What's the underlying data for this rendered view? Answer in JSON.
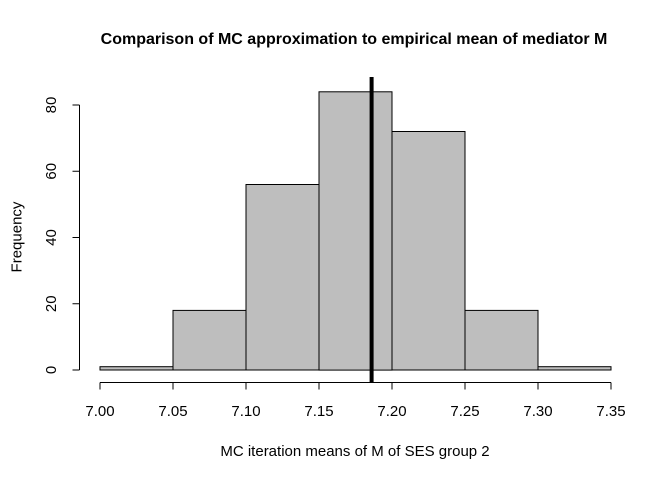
{
  "chart_data": {
    "type": "bar",
    "subtype": "histogram",
    "title": "Comparison of MC approximation to empirical mean of mediator M",
    "xlabel": "MC iteration means of M of SES group 2",
    "ylabel": "Frequency",
    "bin_edges": [
      7.0,
      7.05,
      7.1,
      7.15,
      7.2,
      7.25,
      7.3,
      7.35
    ],
    "counts": [
      1,
      18,
      56,
      84,
      72,
      18,
      1
    ],
    "x_ticks": [
      7.0,
      7.05,
      7.1,
      7.15,
      7.2,
      7.25,
      7.3,
      7.35
    ],
    "x_tick_labels": [
      "7.00",
      "7.05",
      "7.10",
      "7.15",
      "7.20",
      "7.25",
      "7.30",
      "7.35"
    ],
    "y_ticks": [
      0,
      20,
      40,
      60,
      80
    ],
    "y_tick_labels": [
      "0",
      "20",
      "40",
      "60",
      "80"
    ],
    "xlim": [
      7.0,
      7.35
    ],
    "ylim": [
      0,
      84
    ],
    "vline": {
      "x": 7.186,
      "color": "#000000",
      "stroke_width": 4
    },
    "bar_fill": "#bebebe",
    "bar_border": "#000000",
    "axis_color": "#000000",
    "background": "#ffffff",
    "grid": false,
    "legend": null
  }
}
